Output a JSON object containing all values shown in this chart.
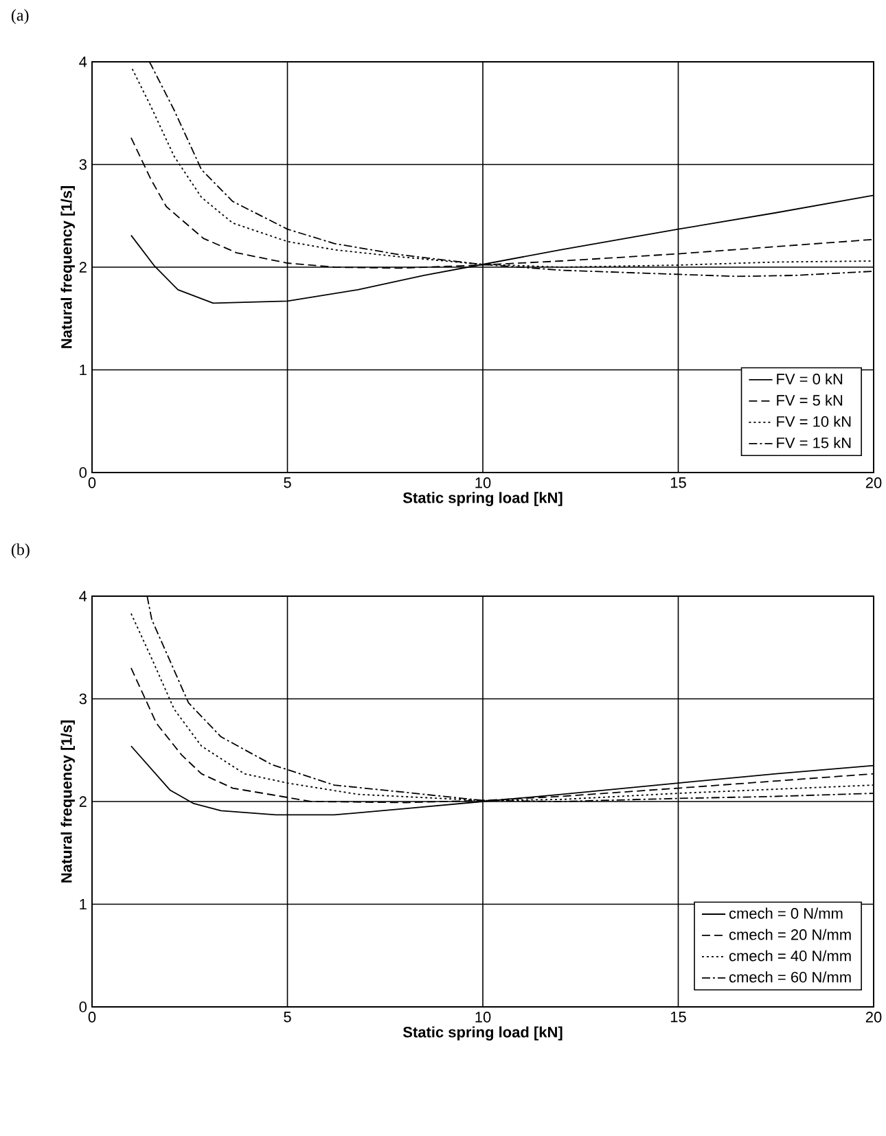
{
  "chart_data": [
    {
      "type": "line",
      "title": "(a)",
      "xlabel": "Static spring load [kN]",
      "ylabel": "Natural frequency [1/s]",
      "xlim": [
        0,
        20
      ],
      "ylim": [
        0,
        4
      ],
      "xticks": [
        0,
        5,
        10,
        15,
        20
      ],
      "yticks": [
        0,
        1,
        2,
        3,
        4
      ],
      "grid": true,
      "legend": "bottom right",
      "marker": "none",
      "series": [
        {
          "name": "FV = 0 kN",
          "color": "#000000",
          "line_style": "solid",
          "x": [
            1.0,
            1.6,
            2.2,
            3.1,
            5,
            6.8,
            8.5,
            9.9,
            12,
            15,
            17.5,
            20
          ],
          "values": [
            2.31,
            2.01,
            1.78,
            1.65,
            1.67,
            1.78,
            1.92,
            2.02,
            2.17,
            2.37,
            2.53,
            2.7
          ]
        },
        {
          "name": "FV = 5 kN",
          "color": "#000000",
          "line_style": "dashed",
          "x": [
            1.0,
            1.5,
            1.9,
            2.85,
            3.7,
            5,
            6.2,
            7.9,
            9.9,
            12,
            15,
            17.5,
            20
          ],
          "values": [
            3.26,
            2.86,
            2.59,
            2.28,
            2.14,
            2.04,
            2.0,
            1.99,
            2.02,
            2.06,
            2.13,
            2.2,
            2.27
          ]
        },
        {
          "name": "FV = 10 kN",
          "color": "#000000",
          "line_style": "dotted",
          "x": [
            1.03,
            1.5,
            2.1,
            2.8,
            3.6,
            5,
            6.2,
            7.9,
            9.9,
            12,
            15,
            17.5,
            20
          ],
          "values": [
            3.93,
            3.57,
            3.08,
            2.68,
            2.43,
            2.25,
            2.17,
            2.1,
            2.03,
            2.0,
            2.02,
            2.05,
            2.06
          ]
        },
        {
          "name": "FV = 15 kN",
          "color": "#000000",
          "line_style": "dashdot",
          "x": [
            1.47,
            2.1,
            2.8,
            3.6,
            5,
            6.2,
            7.9,
            9.9,
            12,
            15,
            16.5,
            18,
            20
          ],
          "values": [
            4.0,
            3.53,
            2.95,
            2.64,
            2.37,
            2.23,
            2.12,
            2.03,
            1.97,
            1.93,
            1.91,
            1.92,
            1.96
          ]
        }
      ]
    },
    {
      "type": "line",
      "title": "(b)",
      "xlabel": "Static spring load [kN]",
      "ylabel": "Natural frequency [1/s]",
      "xlim": [
        0,
        20
      ],
      "ylim": [
        0,
        4
      ],
      "xticks": [
        0,
        5,
        10,
        15,
        20
      ],
      "yticks": [
        0,
        1,
        2,
        3,
        4
      ],
      "grid": true,
      "legend": "bottom right",
      "marker": "none",
      "series": [
        {
          "name": "cmech = 0 N/mm",
          "color": "#000000",
          "line_style": "solid",
          "x": [
            1.0,
            2.0,
            2.6,
            3.3,
            4.7,
            6.2,
            8,
            10,
            12,
            15,
            17.5,
            20
          ],
          "values": [
            2.54,
            2.11,
            1.98,
            1.91,
            1.87,
            1.87,
            1.93,
            2.0,
            2.07,
            2.18,
            2.27,
            2.35
          ]
        },
        {
          "name": "cmech = 20 N/mm",
          "color": "#000000",
          "line_style": "dashed",
          "x": [
            1.0,
            1.65,
            2.3,
            2.8,
            3.6,
            5,
            5.6,
            8,
            10,
            12,
            15,
            17.5,
            20
          ],
          "values": [
            3.3,
            2.76,
            2.45,
            2.27,
            2.13,
            2.04,
            2.0,
            1.99,
            2.01,
            2.05,
            2.13,
            2.2,
            2.27
          ]
        },
        {
          "name": "cmech = 40 N/mm",
          "color": "#000000",
          "line_style": "dotted",
          "x": [
            1.0,
            1.53,
            2.1,
            2.8,
            3.9,
            5,
            6.8,
            10,
            12,
            15,
            17.5,
            20
          ],
          "values": [
            3.83,
            3.39,
            2.9,
            2.54,
            2.27,
            2.18,
            2.07,
            2.01,
            2.02,
            2.08,
            2.12,
            2.16
          ]
        },
        {
          "name": "cmech = 60 N/mm",
          "color": "#000000",
          "line_style": "dashdot",
          "x": [
            1.41,
            1.53,
            2.47,
            3.3,
            4.6,
            6.2,
            8,
            10,
            12,
            15,
            17.5,
            20
          ],
          "values": [
            4.0,
            3.77,
            2.96,
            2.63,
            2.36,
            2.16,
            2.09,
            2.01,
            2.0,
            2.03,
            2.05,
            2.08
          ]
        }
      ]
    }
  ]
}
